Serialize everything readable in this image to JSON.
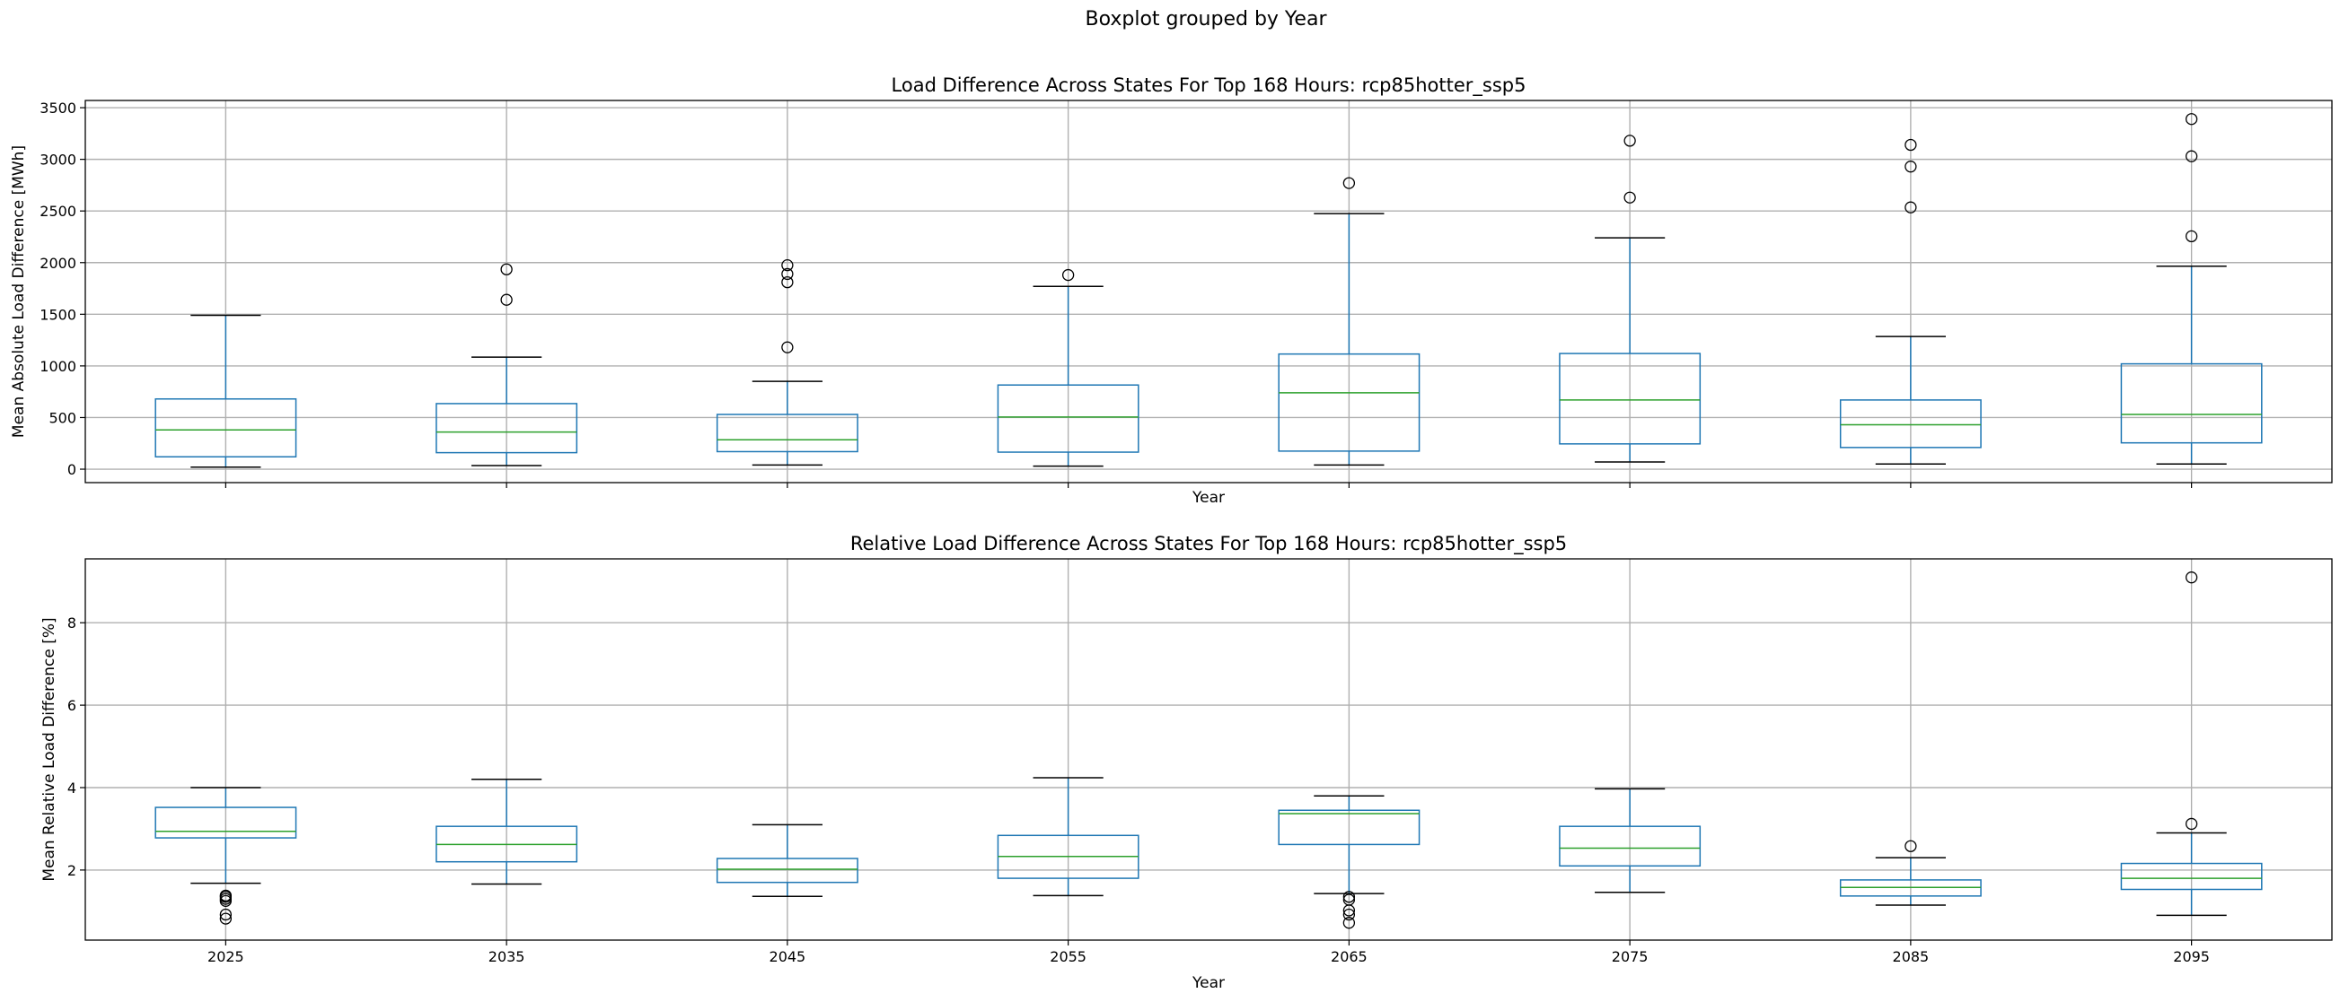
{
  "figure": {
    "suptitle": "Boxplot grouped by Year"
  },
  "colors": {
    "box": "#1f77b4",
    "median": "#2ca02c",
    "whisker": "#1f77b4",
    "cap": "#000000",
    "grid": "#b0b0b0",
    "outlier": "#000000"
  },
  "chart_data": [
    {
      "type": "box",
      "title": "Load Difference Across States For Top 168 Hours: rcp85hotter_ssp5",
      "xlabel": "Year",
      "ylabel": "Mean Absolute Load Difference [MWh]",
      "categories": [
        "2025",
        "2035",
        "2045",
        "2055",
        "2065",
        "2075",
        "2085",
        "2095"
      ],
      "show_xticklabels": false,
      "ylim": [
        -130,
        3570
      ],
      "yticks": [
        0,
        500,
        1000,
        1500,
        2000,
        2500,
        3000,
        3500
      ],
      "grid": true,
      "boxes": [
        {
          "whislo": 20,
          "q1": 120,
          "med": 380,
          "q3": 680,
          "whishi": 1490,
          "fliers": []
        },
        {
          "whislo": 35,
          "q1": 160,
          "med": 360,
          "q3": 635,
          "whishi": 1085,
          "fliers": [
            1640,
            1935
          ]
        },
        {
          "whislo": 40,
          "q1": 170,
          "med": 285,
          "q3": 530,
          "whishi": 850,
          "fliers": [
            1180,
            1810,
            1890,
            1975
          ]
        },
        {
          "whislo": 30,
          "q1": 165,
          "med": 505,
          "q3": 815,
          "whishi": 1770,
          "fliers": [
            1880
          ]
        },
        {
          "whislo": 40,
          "q1": 175,
          "med": 740,
          "q3": 1115,
          "whishi": 2475,
          "fliers": [
            2770
          ]
        },
        {
          "whislo": 70,
          "q1": 245,
          "med": 670,
          "q3": 1120,
          "whishi": 2240,
          "fliers": [
            2630,
            3180
          ]
        },
        {
          "whislo": 50,
          "q1": 210,
          "med": 430,
          "q3": 670,
          "whishi": 1285,
          "fliers": [
            2535,
            2930,
            3140
          ]
        },
        {
          "whislo": 50,
          "q1": 255,
          "med": 530,
          "q3": 1020,
          "whishi": 1965,
          "fliers": [
            2255,
            3030,
            3390
          ]
        }
      ]
    },
    {
      "type": "box",
      "title": "Relative Load Difference Across States For Top 168 Hours: rcp85hotter_ssp5",
      "xlabel": "Year",
      "ylabel": "Mean Relative Load Difference [%]",
      "categories": [
        "2025",
        "2035",
        "2045",
        "2055",
        "2065",
        "2075",
        "2085",
        "2095"
      ],
      "show_xticklabels": true,
      "ylim": [
        0.3,
        9.55
      ],
      "yticks": [
        2,
        4,
        6,
        8
      ],
      "grid": true,
      "boxes": [
        {
          "whislo": 1.68,
          "q1": 2.78,
          "med": 2.94,
          "q3": 3.52,
          "whishi": 4.0,
          "fliers": [
            0.82,
            0.92,
            1.25,
            1.3,
            1.35,
            1.38
          ]
        },
        {
          "whislo": 1.66,
          "q1": 2.2,
          "med": 2.62,
          "q3": 3.06,
          "whishi": 4.2,
          "fliers": []
        },
        {
          "whislo": 1.36,
          "q1": 1.7,
          "med": 2.02,
          "q3": 2.28,
          "whishi": 3.1,
          "fliers": []
        },
        {
          "whislo": 1.38,
          "q1": 1.8,
          "med": 2.33,
          "q3": 2.84,
          "whishi": 4.24,
          "fliers": []
        },
        {
          "whislo": 1.43,
          "q1": 2.62,
          "med": 3.37,
          "q3": 3.45,
          "whishi": 3.8,
          "fliers": [
            0.72,
            0.92,
            1.02,
            1.28,
            1.35
          ]
        },
        {
          "whislo": 1.46,
          "q1": 2.1,
          "med": 2.53,
          "q3": 3.06,
          "whishi": 3.97,
          "fliers": []
        },
        {
          "whislo": 1.15,
          "q1": 1.37,
          "med": 1.58,
          "q3": 1.76,
          "whishi": 2.3,
          "fliers": [
            2.58
          ]
        },
        {
          "whislo": 0.9,
          "q1": 1.53,
          "med": 1.8,
          "q3": 2.16,
          "whishi": 2.9,
          "fliers": [
            3.12,
            9.1
          ]
        }
      ]
    }
  ]
}
